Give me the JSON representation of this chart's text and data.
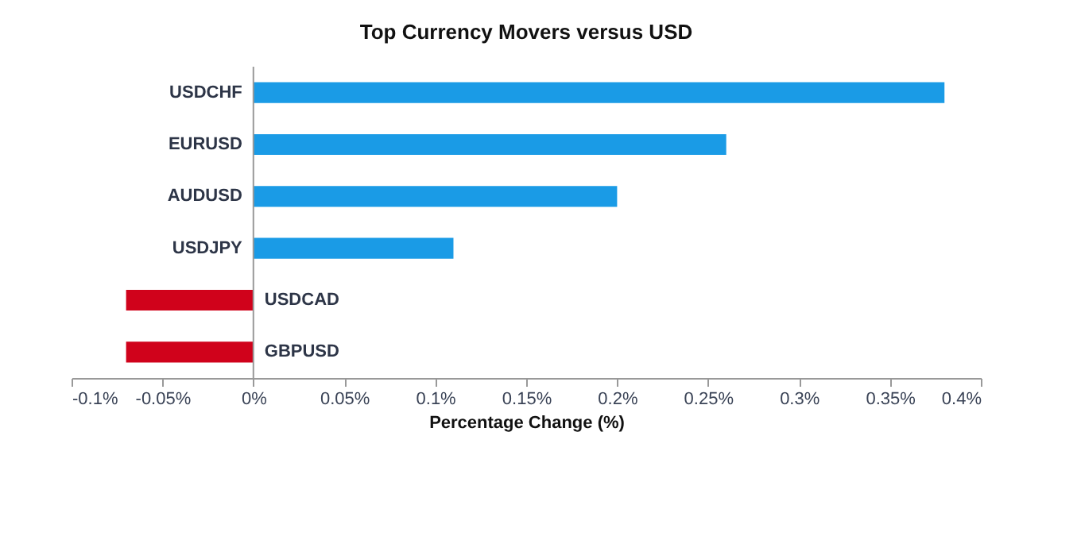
{
  "chart_data": {
    "type": "bar",
    "orientation": "horizontal",
    "title": "Top Currency Movers versus USD",
    "xlabel": "Percentage Change (%)",
    "categories": [
      "USDCHF",
      "EURUSD",
      "AUDUSD",
      "USDJPY",
      "USDCAD",
      "GBPUSD"
    ],
    "values": [
      0.38,
      0.26,
      0.2,
      0.11,
      -0.07,
      -0.07
    ],
    "colors": [
      "#1a9be6",
      "#1a9be6",
      "#1a9be6",
      "#1a9be6",
      "#d0021b",
      "#d0021b"
    ],
    "xlim": [
      -0.1,
      0.4
    ],
    "xticks": [
      {
        "value": -0.1,
        "label": "-0.1%"
      },
      {
        "value": -0.05,
        "label": "-0.05%"
      },
      {
        "value": 0,
        "label": "0%"
      },
      {
        "value": 0.05,
        "label": "0.05%"
      },
      {
        "value": 0.1,
        "label": "0.1%"
      },
      {
        "value": 0.15,
        "label": "0.15%"
      },
      {
        "value": 0.2,
        "label": "0.2%"
      },
      {
        "value": 0.25,
        "label": "0.25%"
      },
      {
        "value": 0.3,
        "label": "0.3%"
      },
      {
        "value": 0.35,
        "label": "0.35%"
      },
      {
        "value": 0.4,
        "label": "0.4%"
      }
    ],
    "grid": false
  }
}
